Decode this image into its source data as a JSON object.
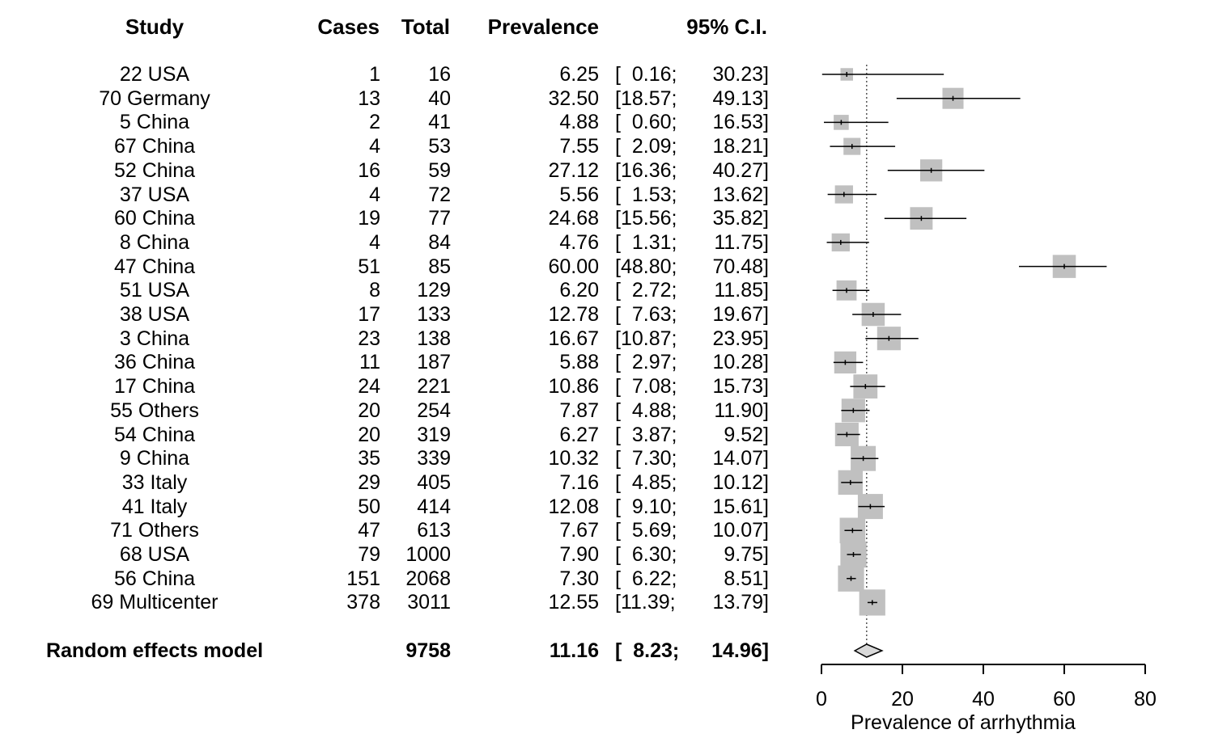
{
  "headers": {
    "study": "Study",
    "cases": "Cases",
    "total": "Total",
    "prevalence": "Prevalence",
    "ci": "95% C.I."
  },
  "chart_data": {
    "type": "forest",
    "xlabel": "Prevalence of arrhythmia",
    "xlim": [
      0,
      80
    ],
    "xticks": [
      "0",
      "20",
      "40",
      "60",
      "80"
    ],
    "reference_line": 11.16,
    "studies": [
      {
        "study": "22 USA",
        "cases": "1",
        "total": "16",
        "prev": "6.25",
        "lo": "0.16",
        "hi": "30.23",
        "weight": 2.5
      },
      {
        "study": "70 Germany",
        "cases": "13",
        "total": "40",
        "prev": "32.50",
        "lo": "18.57",
        "hi": "49.13",
        "weight": 4.2
      },
      {
        "study": "5 China",
        "cases": "2",
        "total": "41",
        "prev": "4.88",
        "lo": "0.60",
        "hi": "16.53",
        "weight": 3.0
      },
      {
        "study": "67 China",
        "cases": "4",
        "total": "53",
        "prev": "7.55",
        "lo": "2.09",
        "hi": "18.21",
        "weight": 3.4
      },
      {
        "study": "52 China",
        "cases": "16",
        "total": "59",
        "prev": "27.12",
        "lo": "16.36",
        "hi": "40.27",
        "weight": 4.4
      },
      {
        "study": "37 USA",
        "cases": "4",
        "total": "72",
        "prev": "5.56",
        "lo": "1.53",
        "hi": "13.62",
        "weight": 3.6
      },
      {
        "study": "60 China",
        "cases": "19",
        "total": "77",
        "prev": "24.68",
        "lo": "15.56",
        "hi": "35.82",
        "weight": 4.5
      },
      {
        "study": "8 China",
        "cases": "4",
        "total": "84",
        "prev": "4.76",
        "lo": "1.31",
        "hi": "11.75",
        "weight": 3.6
      },
      {
        "study": "47 China",
        "cases": "51",
        "total": "85",
        "prev": "60.00",
        "lo": "48.80",
        "hi": "70.48",
        "weight": 4.6
      },
      {
        "study": "51 USA",
        "cases": "8",
        "total": "129",
        "prev": "6.20",
        "lo": "2.72",
        "hi": "11.85",
        "weight": 4.0
      },
      {
        "study": "38 USA",
        "cases": "17",
        "total": "133",
        "prev": "12.78",
        "lo": "7.63",
        "hi": "19.67",
        "weight": 4.6
      },
      {
        "study": "3 China",
        "cases": "23",
        "total": "138",
        "prev": "16.67",
        "lo": "10.87",
        "hi": "23.95",
        "weight": 4.7
      },
      {
        "study": "36 China",
        "cases": "11",
        "total": "187",
        "prev": "5.88",
        "lo": "2.97",
        "hi": "10.28",
        "weight": 4.4
      },
      {
        "study": "17 China",
        "cases": "24",
        "total": "221",
        "prev": "10.86",
        "lo": "7.08",
        "hi": "15.73",
        "weight": 4.8
      },
      {
        "study": "55 Others",
        "cases": "20",
        "total": "254",
        "prev": "7.87",
        "lo": "4.88",
        "hi": "11.90",
        "weight": 4.7
      },
      {
        "study": "54 China",
        "cases": "20",
        "total": "319",
        "prev": "6.27",
        "lo": "3.87",
        "hi": "9.52",
        "weight": 4.7
      },
      {
        "study": "9 China",
        "cases": "35",
        "total": "339",
        "prev": "10.32",
        "lo": "7.30",
        "hi": "14.07",
        "weight": 5.0
      },
      {
        "study": "33 Italy",
        "cases": "29",
        "total": "405",
        "prev": "7.16",
        "lo": "4.85",
        "hi": "10.12",
        "weight": 4.9
      },
      {
        "study": "41 Italy",
        "cases": "50",
        "total": "414",
        "prev": "12.08",
        "lo": "9.10",
        "hi": "15.61",
        "weight": 5.0
      },
      {
        "study": "71 Others",
        "cases": "47",
        "total": "613",
        "prev": "7.67",
        "lo": "5.69",
        "hi": "10.07",
        "weight": 5.1
      },
      {
        "study": "68 USA",
        "cases": "79",
        "total": "1000",
        "prev": "7.90",
        "lo": "6.30",
        "hi": "9.75",
        "weight": 5.2
      },
      {
        "study": "56 China",
        "cases": "151",
        "total": "2068",
        "prev": "7.30",
        "lo": "6.22",
        "hi": "8.51",
        "weight": 5.2
      },
      {
        "study": "69 Multicenter",
        "cases": "378",
        "total": "3011",
        "prev": "12.55",
        "lo": "11.39",
        "hi": "13.79",
        "weight": 5.2
      }
    ],
    "summary": {
      "study": "Random effects model",
      "total": "9758",
      "prev": "11.16",
      "lo": "8.23",
      "hi": "14.96"
    },
    "colors": {
      "box": "#c0c0c0",
      "line": "#000000",
      "diamond_fill": "#d9d9d9"
    }
  }
}
